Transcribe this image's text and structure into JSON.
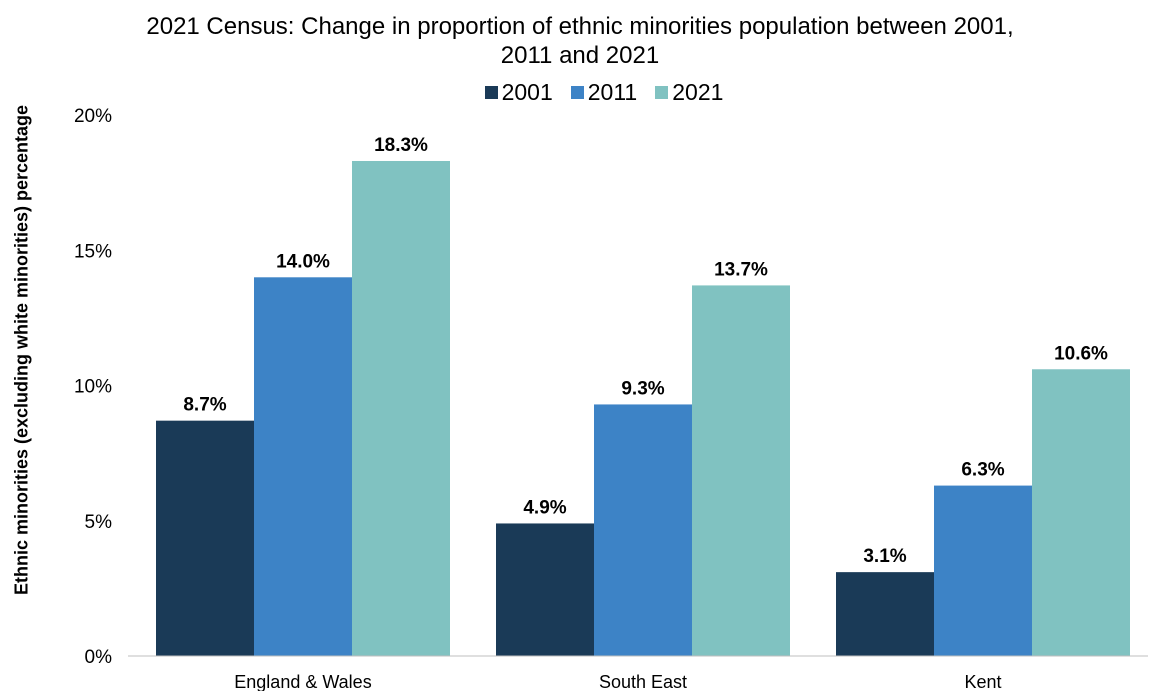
{
  "chart_data": {
    "type": "bar",
    "title_lines": [
      "2021 Census: Change in proportion of ethnic minorities population between 2001,",
      "2011 and 2021"
    ],
    "xlabel": "",
    "ylabel": "Ethnic minorities (excluding white minorities) percentage",
    "categories": [
      "England & Wales",
      "South East",
      "Kent"
    ],
    "series": [
      {
        "name": "2001",
        "color": "#1a3a57",
        "values": [
          8.7,
          4.9,
          3.1
        ],
        "labels": [
          "8.7%",
          "4.9%",
          "3.1%"
        ]
      },
      {
        "name": "2011",
        "color": "#3d83c6",
        "values": [
          14.0,
          9.3,
          6.3
        ],
        "labels": [
          "14.0%",
          "9.3%",
          "6.3%"
        ]
      },
      {
        "name": "2021",
        "color": "#80c2c1",
        "values": [
          18.3,
          13.7,
          10.6
        ],
        "labels": [
          "18.3%",
          "13.7%",
          "10.6%"
        ]
      }
    ],
    "ylim": [
      0,
      20
    ],
    "y_ticks": [
      0,
      5,
      10,
      15,
      20
    ],
    "y_tick_labels": [
      "0%",
      "5%",
      "10%",
      "15%",
      "20%"
    ],
    "grid": false,
    "legend_position": "top-center"
  }
}
